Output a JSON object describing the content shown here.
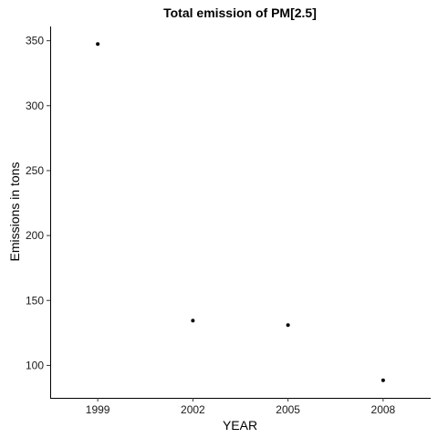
{
  "chart_data": {
    "type": "scatter",
    "title": "Total emission of PM[2.5]",
    "xlabel": "YEAR",
    "ylabel": "Emissions in tons",
    "x": [
      "1999",
      "2002",
      "2005",
      "2008"
    ],
    "y": [
      347.5,
      134.5,
      131.0,
      88.5
    ],
    "yticks": [
      100,
      150,
      200,
      250,
      300,
      350
    ],
    "ylim": [
      75,
      361
    ],
    "grid": false,
    "point_color": "#000000"
  }
}
